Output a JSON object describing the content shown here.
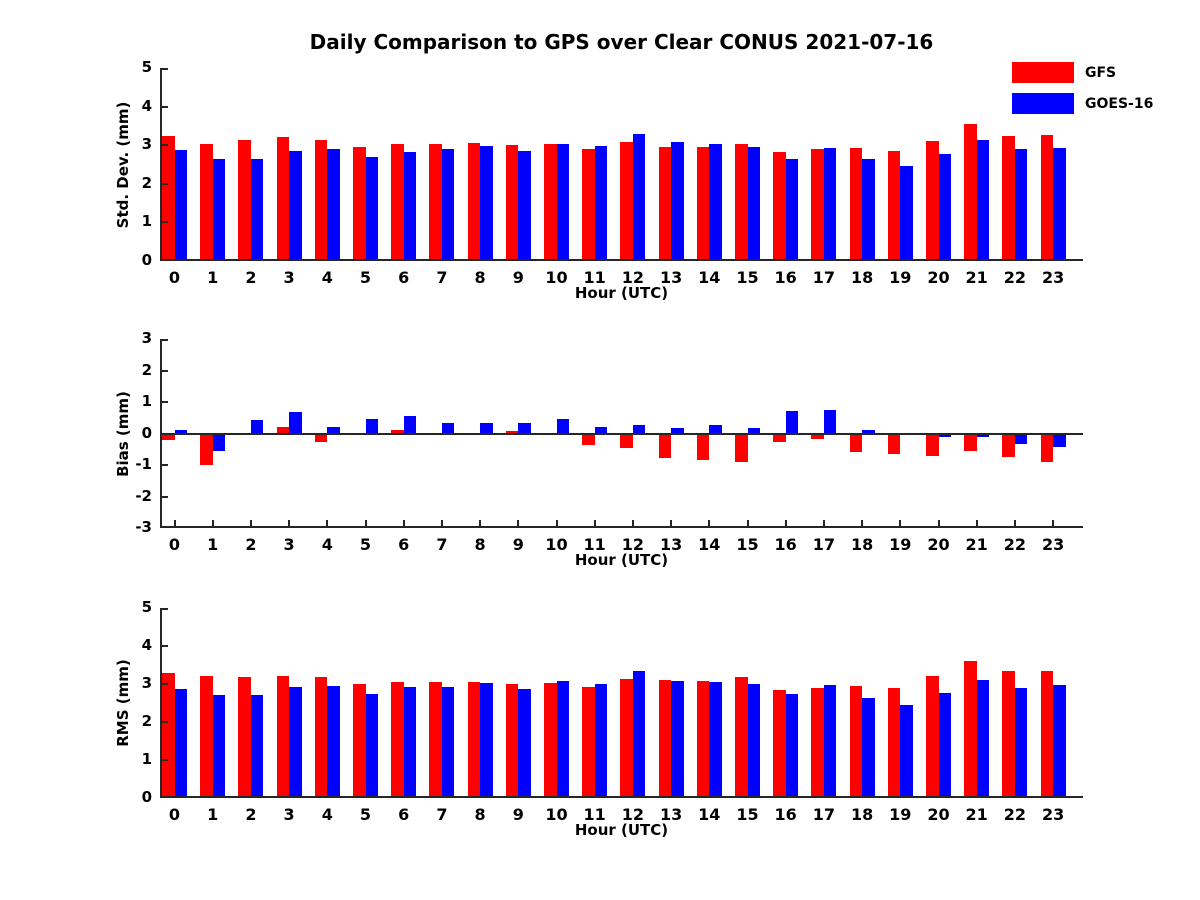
{
  "title": "Daily Comparison to GPS over Clear CONUS 2021-07-16",
  "legend": {
    "position": "top-right-outside",
    "items": [
      {
        "label": "GFS",
        "color": "#ff0000"
      },
      {
        "label": "GOES-16",
        "color": "#0000ff"
      }
    ]
  },
  "colors": {
    "gfs": "#ff0000",
    "goes16": "#0000ff",
    "axis": "#262626",
    "text": "#000000"
  },
  "chart_data": [
    {
      "type": "bar",
      "name": "std-dev",
      "xlabel": "Hour (UTC)",
      "ylabel": "Std. Dev. (mm)",
      "ylim": [
        0,
        5
      ],
      "yticks": [
        0,
        1,
        2,
        3,
        4,
        5
      ],
      "grid": false,
      "categories": [
        0,
        1,
        2,
        3,
        4,
        5,
        6,
        7,
        8,
        9,
        10,
        11,
        12,
        13,
        14,
        15,
        16,
        17,
        18,
        19,
        20,
        21,
        22,
        23
      ],
      "series": [
        {
          "name": "GFS",
          "color": "#ff0000",
          "values": [
            3.24,
            3.02,
            3.14,
            3.2,
            3.13,
            2.95,
            3.04,
            3.04,
            3.06,
            3.0,
            3.02,
            2.9,
            3.07,
            2.96,
            2.96,
            3.04,
            2.83,
            2.89,
            2.92,
            2.84,
            3.11,
            3.55,
            3.25,
            3.26
          ]
        },
        {
          "name": "GOES-16",
          "color": "#0000ff",
          "values": [
            2.87,
            2.65,
            2.65,
            2.84,
            2.91,
            2.69,
            2.83,
            2.9,
            2.98,
            2.84,
            3.04,
            2.97,
            3.3,
            3.07,
            3.02,
            2.96,
            2.64,
            2.92,
            2.64,
            2.45,
            2.77,
            3.13,
            2.9,
            2.93
          ]
        }
      ]
    },
    {
      "type": "bar",
      "name": "bias",
      "xlabel": "Hour (UTC)",
      "ylabel": "Bias (mm)",
      "ylim": [
        -3,
        3
      ],
      "yticks": [
        -3,
        -2,
        -1,
        0,
        1,
        2,
        3
      ],
      "grid": false,
      "categories": [
        0,
        1,
        2,
        3,
        4,
        5,
        6,
        7,
        8,
        9,
        10,
        11,
        12,
        13,
        14,
        15,
        16,
        17,
        18,
        19,
        20,
        21,
        22,
        23
      ],
      "series": [
        {
          "name": "GFS",
          "color": "#ff0000",
          "values": [
            -0.22,
            -1.0,
            -0.05,
            0.2,
            -0.27,
            -0.04,
            0.1,
            -0.05,
            -0.04,
            0.08,
            -0.06,
            -0.35,
            -0.46,
            -0.78,
            -0.83,
            -0.89,
            -0.28,
            -0.16,
            -0.6,
            -0.66,
            -0.7,
            -0.55,
            -0.75,
            -0.9
          ]
        },
        {
          "name": "GOES-16",
          "color": "#0000ff",
          "values": [
            0.1,
            -0.57,
            0.44,
            0.68,
            0.2,
            0.45,
            0.57,
            0.34,
            0.32,
            0.32,
            0.46,
            0.22,
            0.26,
            0.16,
            0.26,
            0.17,
            0.72,
            0.76,
            0.11,
            -0.03,
            -0.1,
            -0.1,
            -0.34,
            -0.44
          ]
        }
      ]
    },
    {
      "type": "bar",
      "name": "rms",
      "xlabel": "Hour (UTC)",
      "ylabel": "RMS (mm)",
      "ylim": [
        0,
        5
      ],
      "yticks": [
        0,
        1,
        2,
        3,
        4,
        5
      ],
      "grid": false,
      "categories": [
        0,
        1,
        2,
        3,
        4,
        5,
        6,
        7,
        8,
        9,
        10,
        11,
        12,
        13,
        14,
        15,
        16,
        17,
        18,
        19,
        20,
        21,
        22,
        23
      ],
      "series": [
        {
          "name": "GFS",
          "color": "#ff0000",
          "values": [
            3.3,
            3.21,
            3.18,
            3.22,
            3.19,
            3.0,
            3.06,
            3.06,
            3.06,
            3.01,
            3.03,
            2.93,
            3.14,
            3.1,
            3.08,
            3.18,
            2.85,
            2.9,
            2.96,
            2.9,
            3.2,
            3.6,
            3.34,
            3.33
          ]
        },
        {
          "name": "GOES-16",
          "color": "#0000ff",
          "values": [
            2.87,
            2.72,
            2.72,
            2.93,
            2.96,
            2.75,
            2.93,
            2.92,
            3.03,
            2.86,
            3.09,
            3.01,
            3.34,
            3.07,
            3.05,
            3.0,
            2.73,
            2.98,
            2.62,
            2.44,
            2.76,
            3.1,
            2.9,
            2.97
          ]
        }
      ]
    }
  ]
}
